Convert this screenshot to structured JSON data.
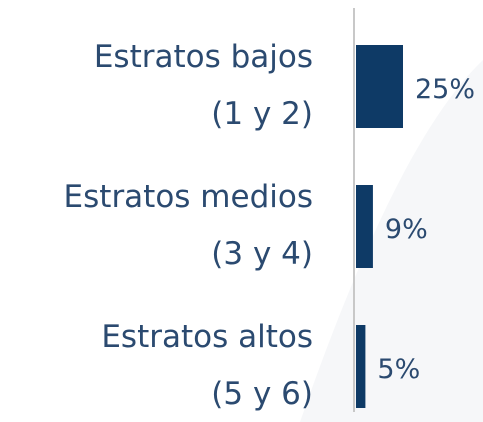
{
  "chart_data": {
    "type": "bar",
    "orientation": "horizontal",
    "categories": [
      "Estratos bajos\n(1 y 2)",
      "Estratos medios\n(3 y 4)",
      "Estratos altos\n(5 y 6)"
    ],
    "values": [
      25,
      9,
      5
    ],
    "value_labels": [
      "25%",
      "9%",
      "5%"
    ],
    "color": "#0e3a66"
  }
}
